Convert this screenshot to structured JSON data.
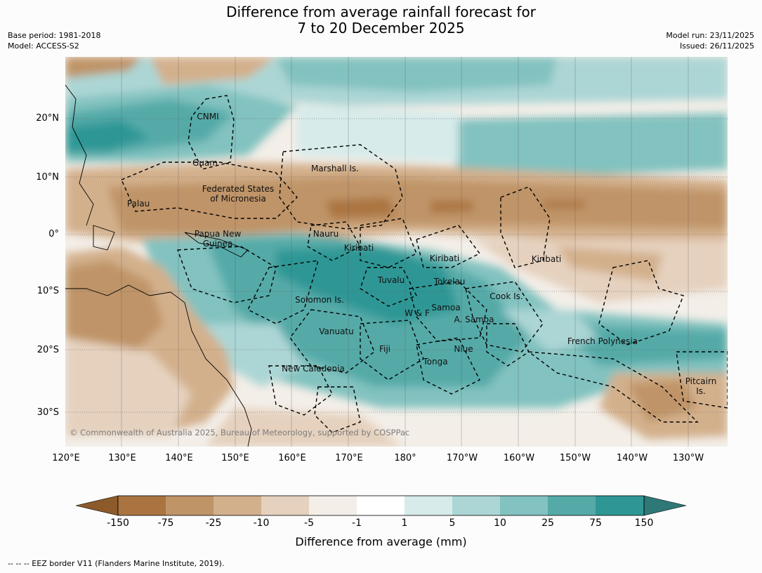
{
  "title": {
    "line1": "Difference from average rainfall forecast for",
    "line2": "7 to 20 December 2025"
  },
  "meta_left": {
    "base_period": "Base period: 1981-2018",
    "model": "Model: ACCESS-S2"
  },
  "meta_right": {
    "model_run": "Model run: 23/11/2025",
    "issued": "Issued: 26/11/2025"
  },
  "lat_labels": [
    "20°N",
    "10°N",
    "0°",
    "10°S",
    "20°S",
    "30°S"
  ],
  "lon_labels": [
    "120°E",
    "130°E",
    "140°E",
    "150°E",
    "160°E",
    "170°E",
    "180°",
    "170°W",
    "160°W",
    "150°W",
    "140°W",
    "130°W"
  ],
  "regions": {
    "cnmi": "CNMI",
    "guam": "Guam",
    "marshall": "Marshall Is.",
    "fsm1": "Federated States",
    "fsm2": "of Micronesia",
    "palau": "Palau",
    "png1": "Papua New",
    "png2": "Guinea",
    "nauru": "Nauru",
    "kiribati1": "Kiribati",
    "kiribati2": "Kiribati",
    "kiribati3": "Kiribati",
    "tuvalu": "Tuvalu",
    "tokelau": "Tokelau",
    "cook": "Cook Is.",
    "solomon": "Solomon Is.",
    "wf": "W & F",
    "samoa": "Samoa",
    "asamoa": "A. Samoa",
    "vanuatu": "Vanuatu",
    "fiji": "Fiji",
    "niue": "Niue",
    "tonga": "Tonga",
    "fp": "French Polynesia",
    "newcal": "New Caledonia",
    "pitcairn1": "Pitcairn",
    "pitcairn2": "Is."
  },
  "credit": "© Commonwealth of Australia 2025, Bureau of Meteorology, supported by COSPPac",
  "colorbar": {
    "colors": [
      "#8c5a2b",
      "#aa7441",
      "#bf9467",
      "#d3b08c",
      "#e5d1be",
      "#f3eee8",
      "#ffffff",
      "#d6ebea",
      "#acd6d5",
      "#82c2c0",
      "#55aaa8",
      "#2e9795",
      "#2e7877"
    ],
    "ticks": [
      "-150",
      "-75",
      "-25",
      "-10",
      "-5",
      "-1",
      "1",
      "5",
      "10",
      "25",
      "75",
      "150"
    ],
    "label": "Difference from average (mm)"
  },
  "legend": "--  --  -- EEZ border V11 (Flanders Marine Institute, 2019)."
}
